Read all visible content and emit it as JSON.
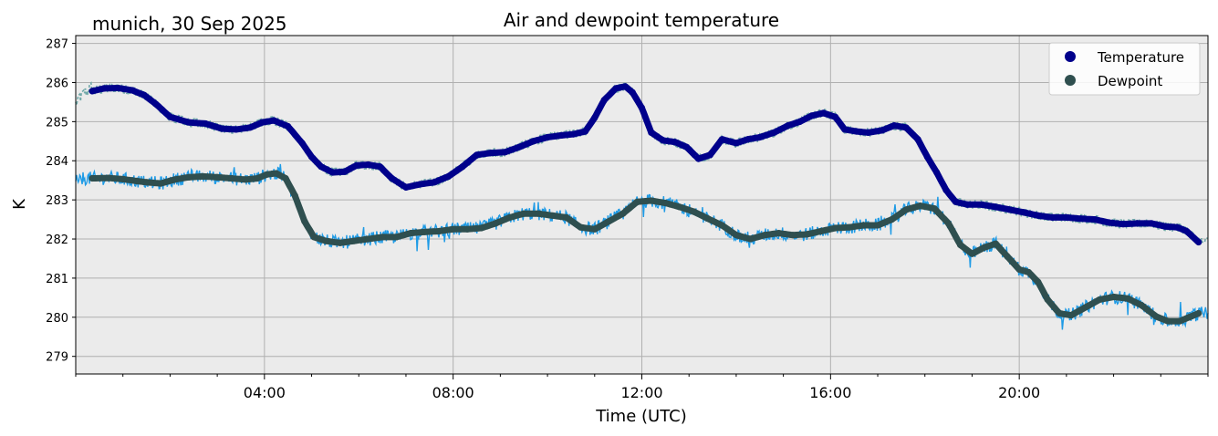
{
  "chart_data": {
    "type": "line",
    "title": "Air and dewpoint temperature",
    "subtitle": "munich, 30 Sep 2025",
    "xlabel": "Time (UTC)",
    "ylabel": "K",
    "xlim_hours": [
      0,
      24
    ],
    "ylim": [
      278.55,
      287.2
    ],
    "x_ticks": [
      {
        "hour": 4,
        "label": "04:00"
      },
      {
        "hour": 8,
        "label": "08:00"
      },
      {
        "hour": 12,
        "label": "12:00"
      },
      {
        "hour": 16,
        "label": "16:00"
      },
      {
        "hour": 20,
        "label": "20:00"
      }
    ],
    "y_ticks": [
      279,
      280,
      281,
      282,
      283,
      284,
      285,
      286,
      287
    ],
    "grid": true,
    "legend_position": "top-right",
    "colors": {
      "plot_background": "#ebebeb",
      "grid": "#b0b0b0",
      "temperature_raw": "#6fa8a8",
      "temperature_smooth": "#00008b",
      "dewpoint_raw": "#1e9be6",
      "dewpoint_smooth": "#2f4f4f"
    },
    "series": [
      {
        "name": "Temperature",
        "legend_label": "Temperature",
        "key": "temperature",
        "x_hours": [
          0.35,
          0.6,
          0.9,
          1.2,
          1.45,
          1.7,
          2.0,
          2.4,
          2.75,
          3.1,
          3.4,
          3.7,
          3.95,
          4.2,
          4.5,
          4.8,
          5.0,
          5.2,
          5.45,
          5.7,
          5.95,
          6.2,
          6.45,
          6.7,
          7.0,
          7.3,
          7.6,
          7.9,
          8.2,
          8.5,
          8.8,
          9.1,
          9.4,
          9.7,
          10.0,
          10.3,
          10.55,
          10.8,
          11.0,
          11.2,
          11.45,
          11.65,
          11.8,
          12.0,
          12.2,
          12.45,
          12.7,
          12.95,
          13.2,
          13.45,
          13.7,
          14.0,
          14.25,
          14.5,
          14.8,
          15.1,
          15.35,
          15.6,
          15.85,
          16.1,
          16.3,
          16.55,
          16.8,
          17.1,
          17.35,
          17.6,
          17.85,
          18.05,
          18.25,
          18.45,
          18.65,
          18.9,
          19.2,
          19.5,
          19.8,
          20.1,
          20.4,
          20.7,
          21.0,
          21.3,
          21.6,
          21.9,
          22.2,
          22.5,
          22.8,
          23.1,
          23.35,
          23.55,
          23.8
        ],
        "values": [
          285.78,
          285.85,
          285.86,
          285.8,
          285.68,
          285.45,
          285.12,
          284.98,
          284.95,
          284.82,
          284.8,
          284.85,
          284.98,
          285.03,
          284.88,
          284.45,
          284.1,
          283.85,
          283.7,
          283.72,
          283.88,
          283.9,
          283.85,
          283.55,
          283.32,
          283.4,
          283.45,
          283.6,
          283.85,
          284.15,
          284.2,
          284.22,
          284.35,
          284.5,
          284.6,
          284.65,
          284.68,
          284.75,
          285.1,
          285.55,
          285.85,
          285.9,
          285.75,
          285.35,
          284.72,
          284.52,
          284.48,
          284.35,
          284.05,
          284.15,
          284.55,
          284.45,
          284.55,
          284.6,
          284.72,
          284.9,
          285.0,
          285.15,
          285.22,
          285.12,
          284.8,
          284.75,
          284.72,
          284.78,
          284.9,
          284.85,
          284.55,
          284.1,
          283.7,
          283.25,
          282.95,
          282.88,
          282.88,
          282.82,
          282.75,
          282.68,
          282.6,
          282.55,
          282.55,
          282.52,
          282.5,
          282.42,
          282.38,
          282.4,
          282.4,
          282.32,
          282.3,
          282.2,
          281.92
        ]
      },
      {
        "name": "Dewpoint",
        "legend_label": "Dewpoint",
        "key": "dewpoint",
        "x_hours": [
          0.35,
          0.7,
          1.0,
          1.3,
          1.5,
          1.8,
          2.1,
          2.4,
          2.7,
          3.0,
          3.3,
          3.6,
          3.85,
          4.05,
          4.25,
          4.45,
          4.65,
          4.85,
          5.05,
          5.3,
          5.6,
          5.9,
          6.2,
          6.5,
          6.8,
          7.1,
          7.4,
          7.7,
          8.0,
          8.3,
          8.6,
          8.9,
          9.2,
          9.5,
          9.8,
          10.1,
          10.4,
          10.7,
          11.0,
          11.3,
          11.6,
          11.9,
          12.2,
          12.5,
          12.8,
          13.1,
          13.4,
          13.7,
          14.0,
          14.3,
          14.6,
          14.9,
          15.2,
          15.5,
          15.8,
          16.1,
          16.4,
          16.7,
          17.0,
          17.3,
          17.6,
          17.9,
          18.2,
          18.5,
          18.75,
          19.0,
          19.25,
          19.5,
          19.75,
          20.0,
          20.2,
          20.4,
          20.6,
          20.85,
          21.1,
          21.4,
          21.7,
          22.0,
          22.3,
          22.6,
          22.9,
          23.15,
          23.4,
          23.6,
          23.8
        ],
        "values": [
          283.55,
          283.56,
          283.53,
          283.48,
          283.45,
          283.42,
          283.52,
          283.58,
          283.6,
          283.58,
          283.55,
          283.52,
          283.55,
          283.65,
          283.68,
          283.55,
          283.1,
          282.45,
          282.05,
          281.95,
          281.9,
          281.95,
          282.0,
          282.05,
          282.05,
          282.15,
          282.18,
          282.2,
          282.25,
          282.25,
          282.28,
          282.4,
          282.55,
          282.65,
          282.65,
          282.6,
          282.55,
          282.3,
          282.25,
          282.45,
          282.65,
          282.95,
          282.98,
          282.92,
          282.82,
          282.7,
          282.52,
          282.35,
          282.1,
          282.0,
          282.1,
          282.15,
          282.1,
          282.12,
          282.2,
          282.28,
          282.3,
          282.35,
          282.35,
          282.5,
          282.75,
          282.85,
          282.78,
          282.4,
          281.85,
          281.62,
          281.78,
          281.88,
          281.55,
          281.22,
          281.15,
          280.9,
          280.45,
          280.1,
          280.05,
          280.25,
          280.45,
          280.52,
          280.48,
          280.3,
          280.02,
          279.9,
          279.9,
          280.0,
          280.1
        ]
      }
    ]
  }
}
